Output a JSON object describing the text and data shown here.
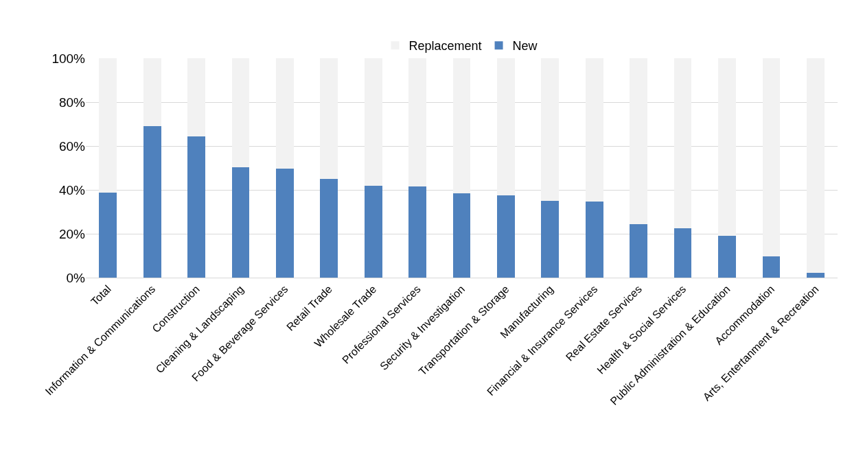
{
  "chart_data": {
    "type": "bar",
    "stacked": true,
    "categories": [
      "Total",
      "Information & Communications",
      "Construction",
      "Cleaning & Landscaping",
      "Food & Beverage Services",
      "Retail Trade",
      "Wholesale Trade",
      "Professional Services",
      "Security & Investigation",
      "Transportation & Storage",
      "Manufacturing",
      "Financial & Insurance Services",
      "Real Estate Services",
      "Health & Social Services",
      "Public Administration & Education",
      "Accommodation",
      "Arts, Entertanment & Recreation"
    ],
    "series": [
      {
        "name": "New",
        "color": "#4f81bd",
        "values": [
          38.7,
          69.2,
          64.5,
          50.3,
          49.7,
          45,
          41.8,
          41.5,
          38.4,
          37.4,
          34.9,
          34.6,
          24.5,
          22.6,
          19.2,
          9.7,
          2.2
        ]
      },
      {
        "name": "Replacement",
        "color": "#f2f2f2",
        "values": [
          61.3,
          30.8,
          35.5,
          49.7,
          50.3,
          55,
          58.2,
          58.5,
          61.6,
          62.6,
          65.1,
          65.4,
          75.5,
          77.4,
          80.8,
          90.3,
          97.8
        ]
      }
    ],
    "ylim": [
      0,
      100
    ],
    "yticks": [
      {
        "value": 0,
        "label": "0%"
      },
      {
        "value": 20,
        "label": "20%"
      },
      {
        "value": 40,
        "label": "40%"
      },
      {
        "value": 60,
        "label": "60%"
      },
      {
        "value": 80,
        "label": "80%"
      },
      {
        "value": 100,
        "label": "100%"
      }
    ],
    "grid": "y",
    "legend": "top"
  }
}
